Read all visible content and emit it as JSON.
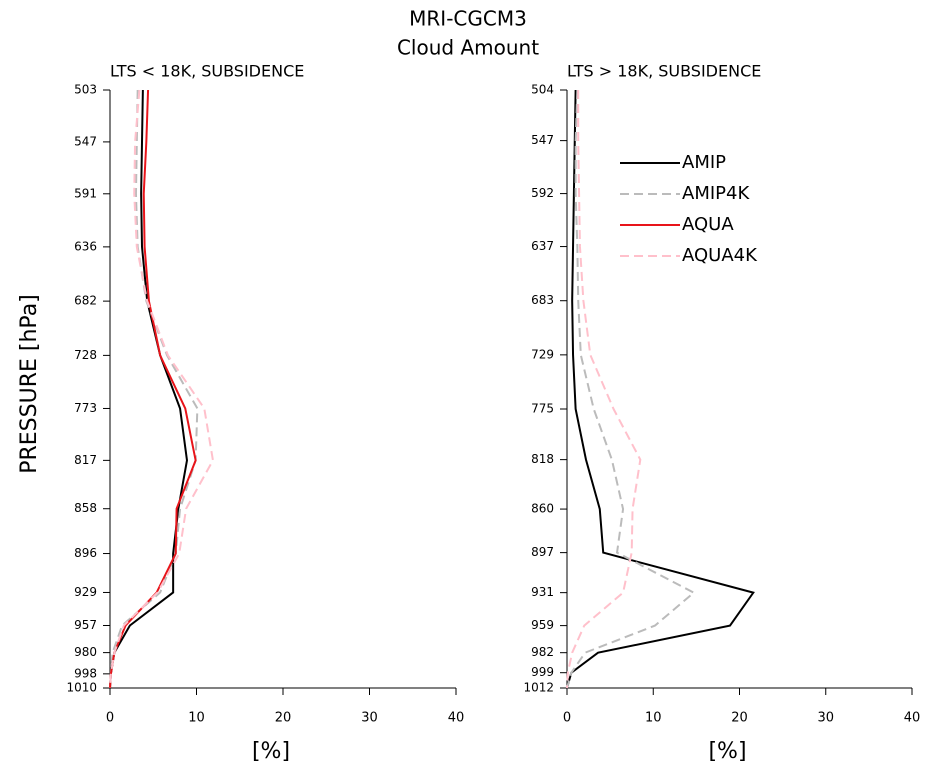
{
  "title": "MRI-CGCM3",
  "subtitle": "Cloud Amount",
  "chart_data": [
    {
      "type": "line",
      "title": "LTS < 18K, SUBSIDENCE",
      "xlabel": "[%]",
      "ylabel": "PRESSURE [hPa]",
      "y": [
        503,
        547,
        591,
        636,
        682,
        728,
        773,
        817,
        858,
        896,
        929,
        957,
        980,
        998,
        1010
      ],
      "ylim": [
        503,
        1010
      ],
      "yticks": [
        503,
        547,
        591,
        636,
        682,
        728,
        773,
        817,
        858,
        896,
        929,
        957,
        980,
        998,
        1010
      ],
      "xlim": [
        0,
        40
      ],
      "xticks": [
        0,
        10,
        20,
        30,
        40
      ],
      "series": [
        {
          "name": "AMIP",
          "color": "#000000",
          "linestyle": "solid",
          "values": [
            3.8,
            3.7,
            3.6,
            3.7,
            4.3,
            5.8,
            8.1,
            8.9,
            7.9,
            7.3,
            7.3,
            2.3,
            0.5,
            0.1,
            0
          ]
        },
        {
          "name": "AMIP4K",
          "color": "#bbbbbb",
          "linestyle": "dashed",
          "values": [
            3.2,
            3.1,
            3.0,
            3.2,
            4.2,
            6.6,
            10.1,
            9.9,
            8.1,
            7.6,
            5.8,
            1.4,
            0.3,
            0.1,
            0
          ]
        },
        {
          "name": "AQUA",
          "color": "#e8141a",
          "linestyle": "solid",
          "values": [
            4.4,
            4.2,
            3.9,
            4.0,
            4.5,
            5.8,
            8.7,
            9.9,
            7.7,
            7.6,
            5.4,
            1.8,
            0.5,
            0.1,
            0
          ]
        },
        {
          "name": "AQUA4K",
          "color": "#ffc0cb",
          "linestyle": "dashed",
          "values": [
            3.4,
            2.9,
            2.8,
            3.1,
            4.3,
            6.7,
            10.9,
            11.9,
            8.8,
            8.0,
            5.5,
            1.6,
            0.5,
            0.1,
            0
          ]
        }
      ]
    },
    {
      "type": "line",
      "title": "LTS > 18K, SUBSIDENCE",
      "xlabel": "[%]",
      "legend": "upper center",
      "y": [
        504,
        547,
        592,
        637,
        683,
        729,
        775,
        818,
        860,
        897,
        931,
        959,
        982,
        999,
        1012
      ],
      "ylim": [
        504,
        1012
      ],
      "yticks": [
        504,
        547,
        592,
        637,
        683,
        729,
        775,
        818,
        860,
        897,
        931,
        959,
        982,
        999,
        1012
      ],
      "xlim": [
        0,
        40
      ],
      "xticks": [
        0,
        10,
        20,
        30,
        40
      ],
      "series": [
        {
          "name": "AMIP",
          "color": "#000000",
          "linestyle": "solid",
          "values": [
            1.0,
            0.9,
            0.8,
            0.7,
            0.6,
            0.7,
            1.0,
            2.2,
            3.8,
            4.2,
            21.6,
            18.9,
            3.6,
            0.5,
            0
          ]
        },
        {
          "name": "AMIP4K",
          "color": "#bbbbbb",
          "linestyle": "dashed",
          "values": [
            1.2,
            1.0,
            1.0,
            1.2,
            1.3,
            1.6,
            3.1,
            5.2,
            6.5,
            5.8,
            14.7,
            10.2,
            2.1,
            0.5,
            0
          ]
        },
        {
          "name": "AQUA",
          "color": "#e8141a",
          "linestyle": "solid",
          "values": [
            null,
            null,
            null,
            null,
            null,
            null,
            null,
            null,
            null,
            null,
            null,
            null,
            null,
            null,
            null
          ]
        },
        {
          "name": "AQUA4K",
          "color": "#ffc0cb",
          "linestyle": "dashed",
          "values": [
            1.3,
            1.3,
            1.4,
            1.5,
            1.9,
            2.7,
            5.4,
            8.5,
            7.6,
            7.5,
            6.5,
            2.0,
            0.6,
            0.1,
            0
          ]
        }
      ]
    }
  ]
}
